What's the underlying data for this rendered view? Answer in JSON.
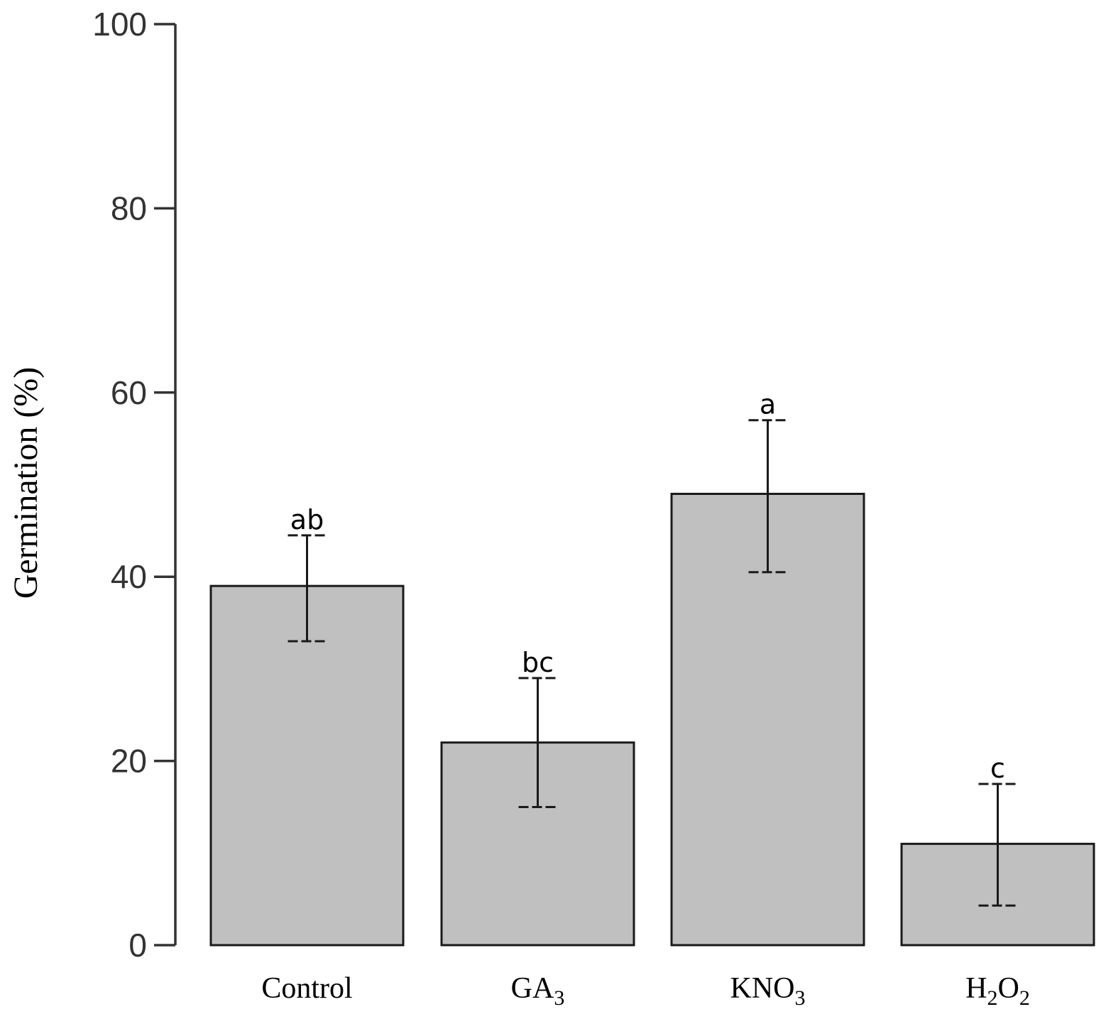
{
  "chart_data": {
    "type": "bar",
    "title": "",
    "xlabel": "",
    "ylabel": "Germination (%)",
    "ylim": [
      0,
      100
    ],
    "yticks": [
      0,
      20,
      40,
      60,
      80,
      100
    ],
    "grid": false,
    "bar_color": "#c0c0c0",
    "categories": [
      {
        "base": "Control",
        "sub": "",
        "tail": ""
      },
      {
        "base": "GA",
        "sub": "3",
        "tail": ""
      },
      {
        "base": "KNO",
        "sub": "3",
        "tail": ""
      },
      {
        "base": "H",
        "sub": "2",
        "tail": "O",
        "sub2": "2"
      }
    ],
    "values": [
      39,
      22,
      49,
      11
    ],
    "error_low": [
      33,
      15,
      40.5,
      4.3
    ],
    "error_high": [
      44.5,
      29,
      57,
      17.5
    ],
    "significance": [
      "ab",
      "bc",
      "a",
      "c"
    ]
  }
}
